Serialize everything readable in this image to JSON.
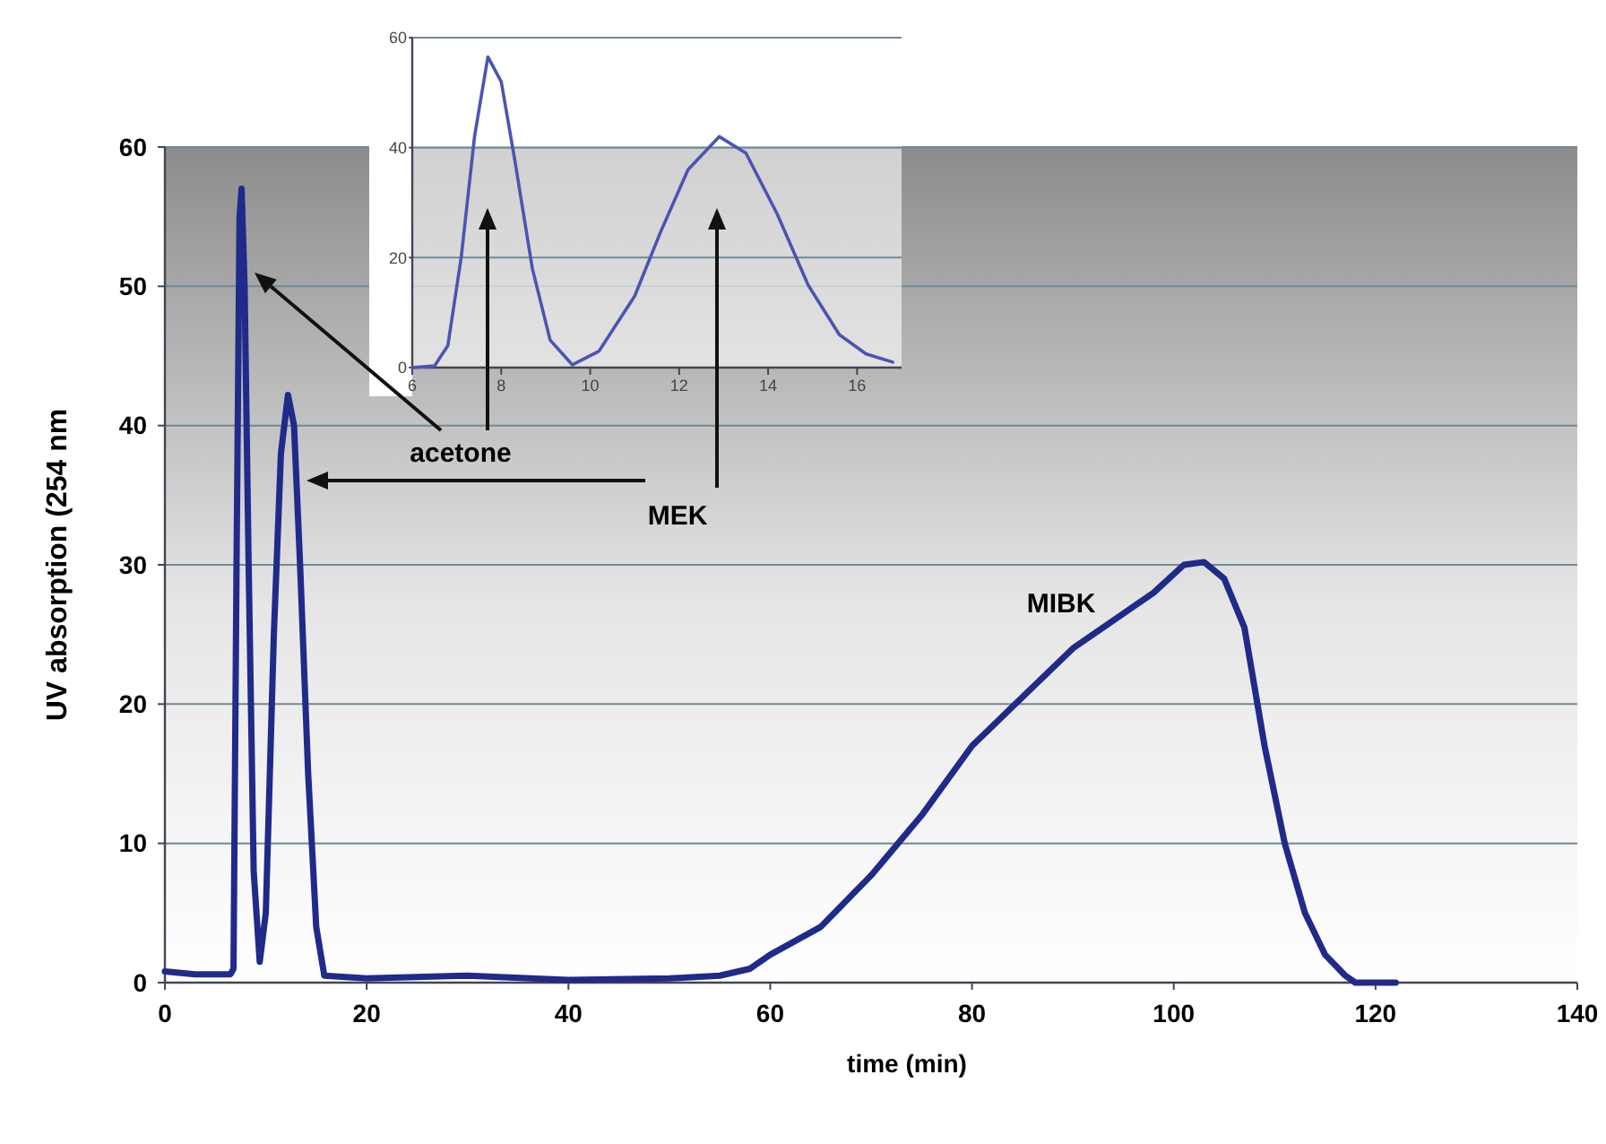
{
  "chart_data": [
    {
      "type": "line",
      "xlabel": "time (min)",
      "ylabel": "UV absorption (254 nm",
      "xlim": [
        0,
        140
      ],
      "ylim": [
        0,
        60
      ],
      "xticks": [
        0,
        20,
        40,
        60,
        80,
        100,
        120,
        140
      ],
      "yticks": [
        0,
        10,
        20,
        30,
        40,
        50,
        60
      ],
      "grid": "y",
      "marker": "none",
      "line_style": "solid",
      "series": [
        {
          "color": "#1f2a8a",
          "x": [
            0,
            3,
            6.5,
            6.8,
            7.1,
            7.4,
            7.6,
            7.9,
            8.3,
            8.8,
            9.4,
            10,
            10.8,
            11.5,
            12.2,
            12.8,
            13.4,
            14.2,
            15,
            15.8,
            20,
            30,
            40,
            50,
            55,
            58,
            60,
            65,
            70,
            75,
            80,
            85,
            90,
            95,
            98,
            101,
            103,
            105,
            107,
            109,
            111,
            113,
            115,
            117,
            118,
            122
          ],
          "values": [
            0.8,
            0.6,
            0.6,
            1,
            30,
            55,
            57,
            50,
            30,
            8,
            1.5,
            5,
            25,
            38,
            42.2,
            40,
            30,
            15,
            4,
            0.5,
            0.3,
            0.5,
            0.2,
            0.3,
            0.5,
            1,
            2,
            4,
            7.7,
            12,
            17,
            20.5,
            24,
            26.5,
            28,
            30,
            30.2,
            29,
            25.5,
            17,
            10,
            5,
            2,
            0.5,
            0,
            0
          ]
        }
      ],
      "annotations": [
        "acetone",
        "MEK",
        "MIBK"
      ]
    },
    {
      "type": "line",
      "xlim": [
        6,
        17
      ],
      "ylim": [
        0,
        60
      ],
      "xticks": [
        6,
        8,
        10,
        12,
        14,
        16
      ],
      "yticks": [
        0,
        20,
        40,
        60
      ],
      "grid": "y",
      "marker": "none",
      "line_style": "solid",
      "series": [
        {
          "color": "#4b55b0",
          "x": [
            6,
            6.5,
            6.8,
            7.1,
            7.4,
            7.7,
            8,
            8.3,
            8.7,
            9.1,
            9.6,
            10.2,
            11,
            11.6,
            12.2,
            12.9,
            13.5,
            14.2,
            14.9,
            15.6,
            16.2,
            16.8
          ],
          "values": [
            0,
            0.3,
            4,
            20,
            42,
            56.5,
            52,
            38,
            18,
            5,
            0.5,
            3,
            13,
            25,
            36,
            42,
            39,
            28,
            15,
            6,
            2.5,
            1
          ]
        }
      ]
    }
  ]
}
